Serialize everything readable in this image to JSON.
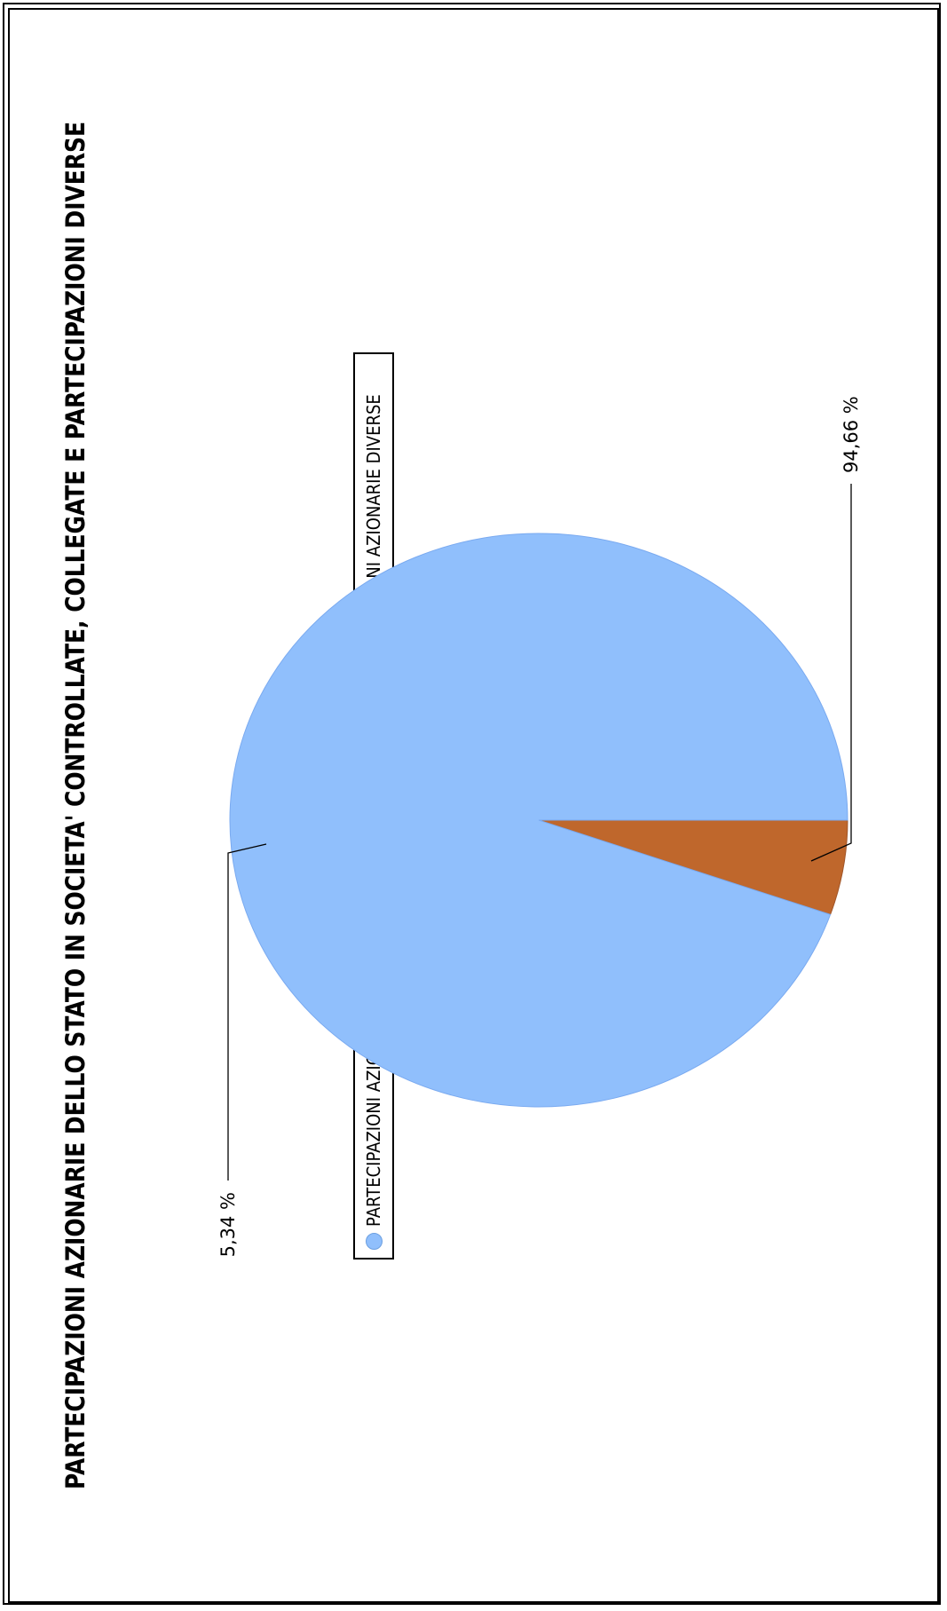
{
  "chart_data": {
    "type": "pie",
    "title": "PARTECIPAZIONI AZIONARIE DELLO STATO IN SOCIETA' CONTROLLATE, COLLEGATE E PARTECIPAZIONI DIVERSE",
    "legend_position": "top",
    "slices": [
      {
        "name": "PARTECIPAZIONI AZIONARIE IN SOCIETA' CONTROLLATE",
        "value": 94.66,
        "label": "94,66 %",
        "color": "#90bffc"
      },
      {
        "name": "PARTECIPAZIONI AZIONARIE DIVERSE",
        "value": 5.34,
        "label": "5,34 %",
        "color": "#bf672c"
      }
    ]
  }
}
